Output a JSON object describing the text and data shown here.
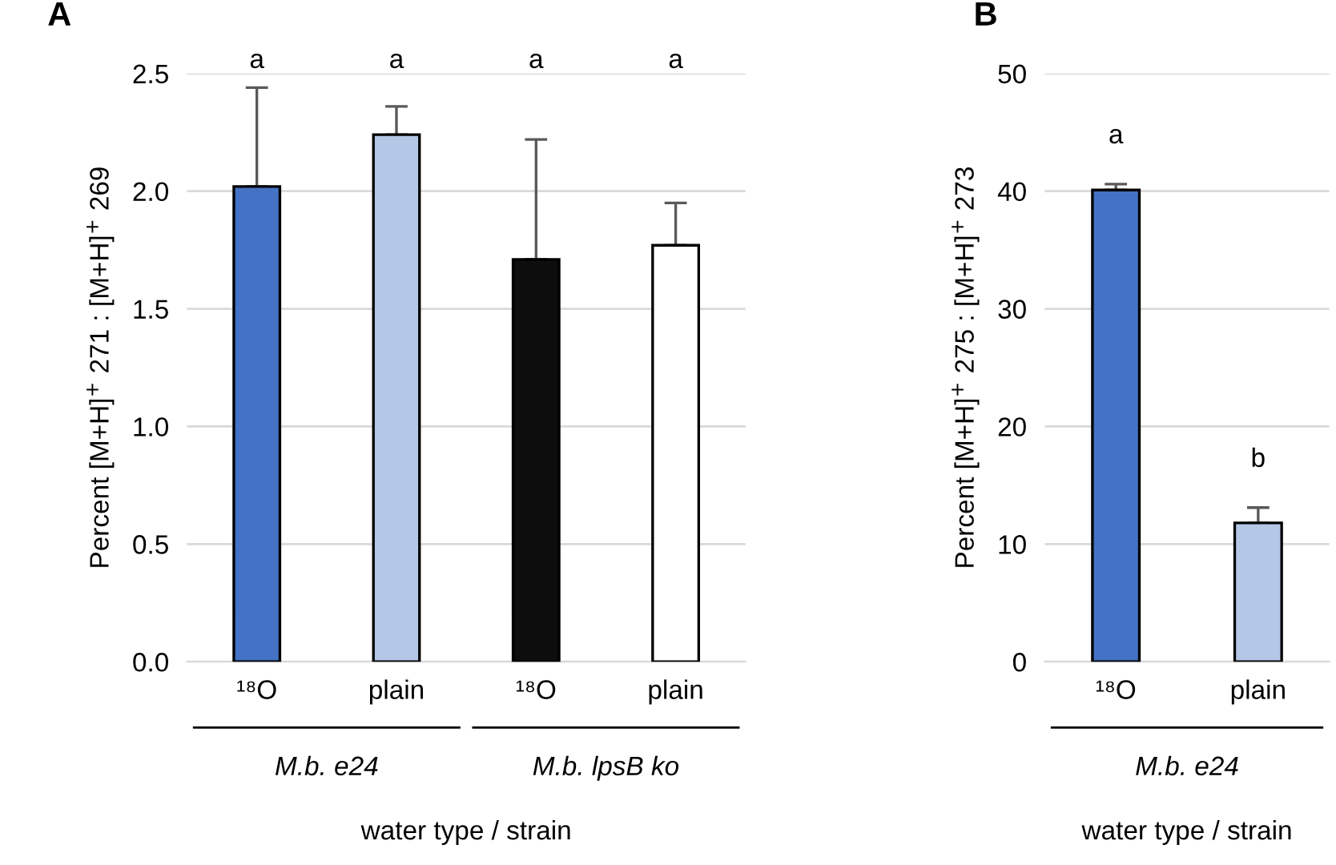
{
  "chart_data": [
    {
      "type": "bar",
      "categories": [
        "¹⁸O",
        "plain",
        "¹⁸O",
        "plain"
      ],
      "values": [
        2.02,
        2.24,
        1.71,
        1.77
      ],
      "colors": [
        "#4472c4",
        "#b4c7e7",
        "#0d0d0d",
        "#ffffff"
      ],
      "errors": [
        [
          2.02,
          2.44
        ],
        [
          2.24,
          2.36
        ],
        [
          1.71,
          2.22
        ],
        [
          1.77,
          1.95
        ]
      ],
      "ylim": [
        0,
        2.5
      ],
      "yticks": [
        {
          "value": 0,
          "label": "0.0"
        },
        {
          "value": 0.5,
          "label": "0.5"
        },
        {
          "value": 1,
          "label": "1.0"
        },
        {
          "value": 1.5,
          "label": "1.5"
        },
        {
          "value": 2,
          "label": "2.0"
        },
        {
          "value": 2.5,
          "label": "2.5"
        }
      ],
      "grid": "y",
      "ylabel": "Percent [M+H]$^{+}$ 271 : [M+H]$^{+}$ 269",
      "xlabel": "water type / strain",
      "annotations": [
        "A",
        "a",
        "a",
        "a",
        "a",
        "M.b. e24",
        "M.b. lpsB ko"
      ]
    },
    {
      "type": "bar",
      "categories": [
        "¹⁸O",
        "plain"
      ],
      "values": [
        40.1,
        11.8
      ],
      "colors": [
        "#4472c4",
        "#b4c7e7"
      ],
      "errors": [
        [
          40.1,
          40.6
        ],
        [
          11.8,
          13.1
        ]
      ],
      "ylim": [
        0,
        50
      ],
      "yticks": [
        0,
        10,
        20,
        30,
        40,
        50
      ],
      "grid": "y",
      "ylabel": "Percent [M+H]$^{+}$ 275 : [M+H]$^{+}$ 273",
      "xlabel": "water type / strain",
      "annotations": [
        "B",
        "a",
        "b",
        "M.b. e24"
      ]
    }
  ]
}
